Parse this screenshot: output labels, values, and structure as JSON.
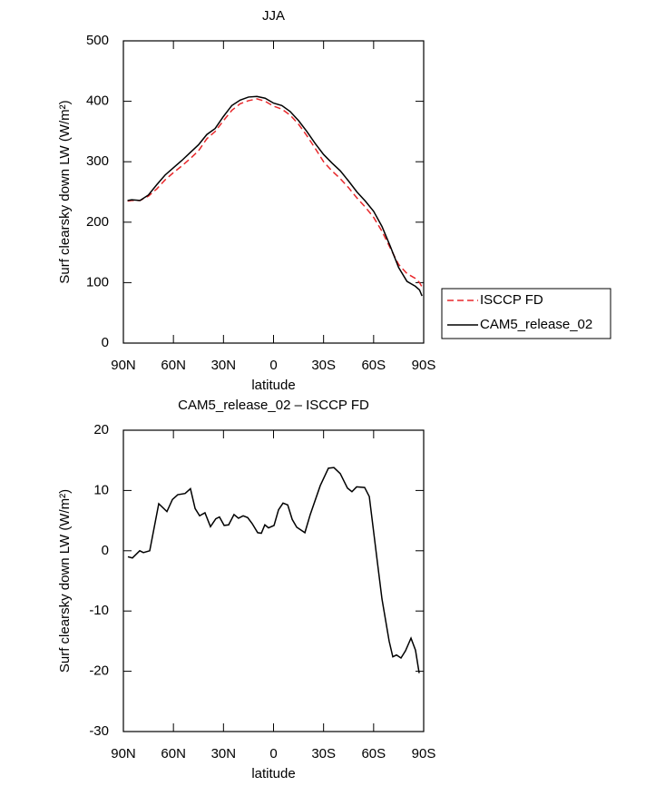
{
  "chart_data": [
    {
      "type": "line",
      "title": "JJA",
      "xlabel": "latitude",
      "ylabel": "Surf clearsky down LW (W/m²)",
      "x": [
        87.5,
        85,
        80,
        75,
        70,
        65,
        60,
        55,
        50,
        45,
        40,
        35,
        30,
        25,
        20,
        15,
        10,
        5,
        0,
        -5,
        -10,
        -15,
        -20,
        -25,
        -30,
        -35,
        -40,
        -45,
        -50,
        -55,
        -60,
        -65,
        -70,
        -75,
        -80,
        -85,
        -87.5,
        -89
      ],
      "series": [
        {
          "name": "ISCCP FD",
          "color": "#e8282b",
          "dash": true,
          "values": [
            235,
            236,
            236,
            243,
            255,
            270,
            282,
            293,
            305,
            318,
            338,
            350,
            368,
            385,
            396,
            401,
            404,
            400,
            392,
            387,
            377,
            362,
            343,
            322,
            300,
            285,
            272,
            257,
            240,
            225,
            208,
            185,
            157,
            130,
            115,
            107,
            100,
            93
          ]
        },
        {
          "name": "CAM5_release_02",
          "color": "#000000",
          "dash": false,
          "values": [
            236,
            237,
            236,
            245,
            262,
            278,
            290,
            302,
            315,
            328,
            345,
            355,
            375,
            393,
            402,
            407,
            408,
            405,
            397,
            393,
            383,
            368,
            350,
            330,
            312,
            298,
            285,
            268,
            250,
            235,
            218,
            193,
            160,
            125,
            102,
            94,
            88,
            78
          ]
        }
      ],
      "xlim": [
        90,
        -90
      ],
      "xticks": [
        {
          "value": 90,
          "label": "90N"
        },
        {
          "value": 60,
          "label": "60N"
        },
        {
          "value": 30,
          "label": "30N"
        },
        0,
        {
          "value": -30,
          "label": "30S"
        },
        {
          "value": -60,
          "label": "60S"
        },
        {
          "value": -90,
          "label": "90S"
        }
      ],
      "ylim": [
        0,
        500
      ],
      "yticks": [
        0,
        100,
        200,
        300,
        400,
        500
      ],
      "legend": "right"
    },
    {
      "type": "line",
      "title": "CAM5_release_02 – ISCCP FD",
      "xlabel": "latitude",
      "ylabel": "Surf clearsky down LW (W/m²)",
      "x": [
        87.3,
        84.6,
        80.2,
        78.0,
        74.2,
        68.8,
        63.9,
        60.6,
        57.4,
        53.0,
        49.8,
        47.0,
        44.3,
        41.1,
        37.8,
        34.6,
        32.4,
        29.6,
        26.9,
        23.7,
        21.0,
        18.2,
        15.5,
        12.8,
        9.5,
        7.3,
        5.2,
        3.0,
        -0.3,
        -3.0,
        -5.7,
        -8.5,
        -11.2,
        -13.9,
        -18.8,
        -22.0,
        -28.0,
        -32.9,
        -36.2,
        -40.0,
        -44.3,
        -47.0,
        -49.8,
        -54.6,
        -57.4,
        -62.3,
        -65.0,
        -69.3,
        -71.5,
        -73.7,
        -76.4,
        -79.1,
        -82.4,
        -85.1,
        -87.3
      ],
      "series": [
        {
          "color": "#000000",
          "dash": false,
          "values": [
            -1,
            -1.2,
            0,
            -0.3,
            0,
            7.8,
            6.5,
            8.5,
            9.3,
            9.5,
            10.3,
            7,
            5.8,
            6.3,
            4,
            5.3,
            5.6,
            4.2,
            4.3,
            6,
            5.4,
            5.8,
            5.5,
            4.5,
            3,
            2.9,
            4.3,
            3.8,
            4.2,
            6.8,
            7.9,
            7.6,
            5.2,
            3.9,
            3,
            6,
            10.8,
            13.7,
            13.8,
            12.8,
            10.4,
            9.8,
            10.6,
            10.5,
            9,
            -2,
            -8,
            -15,
            -17.6,
            -17.3,
            -17.8,
            -16.6,
            -14.5,
            -16.5,
            -20.3
          ]
        }
      ],
      "xlim": [
        90,
        -90
      ],
      "xticks": [
        {
          "value": 90,
          "label": "90N"
        },
        {
          "value": 60,
          "label": "60N"
        },
        {
          "value": 30,
          "label": "30N"
        },
        0,
        {
          "value": -30,
          "label": "30S"
        },
        {
          "value": -60,
          "label": "60S"
        },
        {
          "value": -90,
          "label": "90S"
        }
      ],
      "ylim": [
        -30,
        20
      ],
      "yticks": [
        -30,
        -20,
        -10,
        0,
        10,
        20
      ]
    }
  ]
}
